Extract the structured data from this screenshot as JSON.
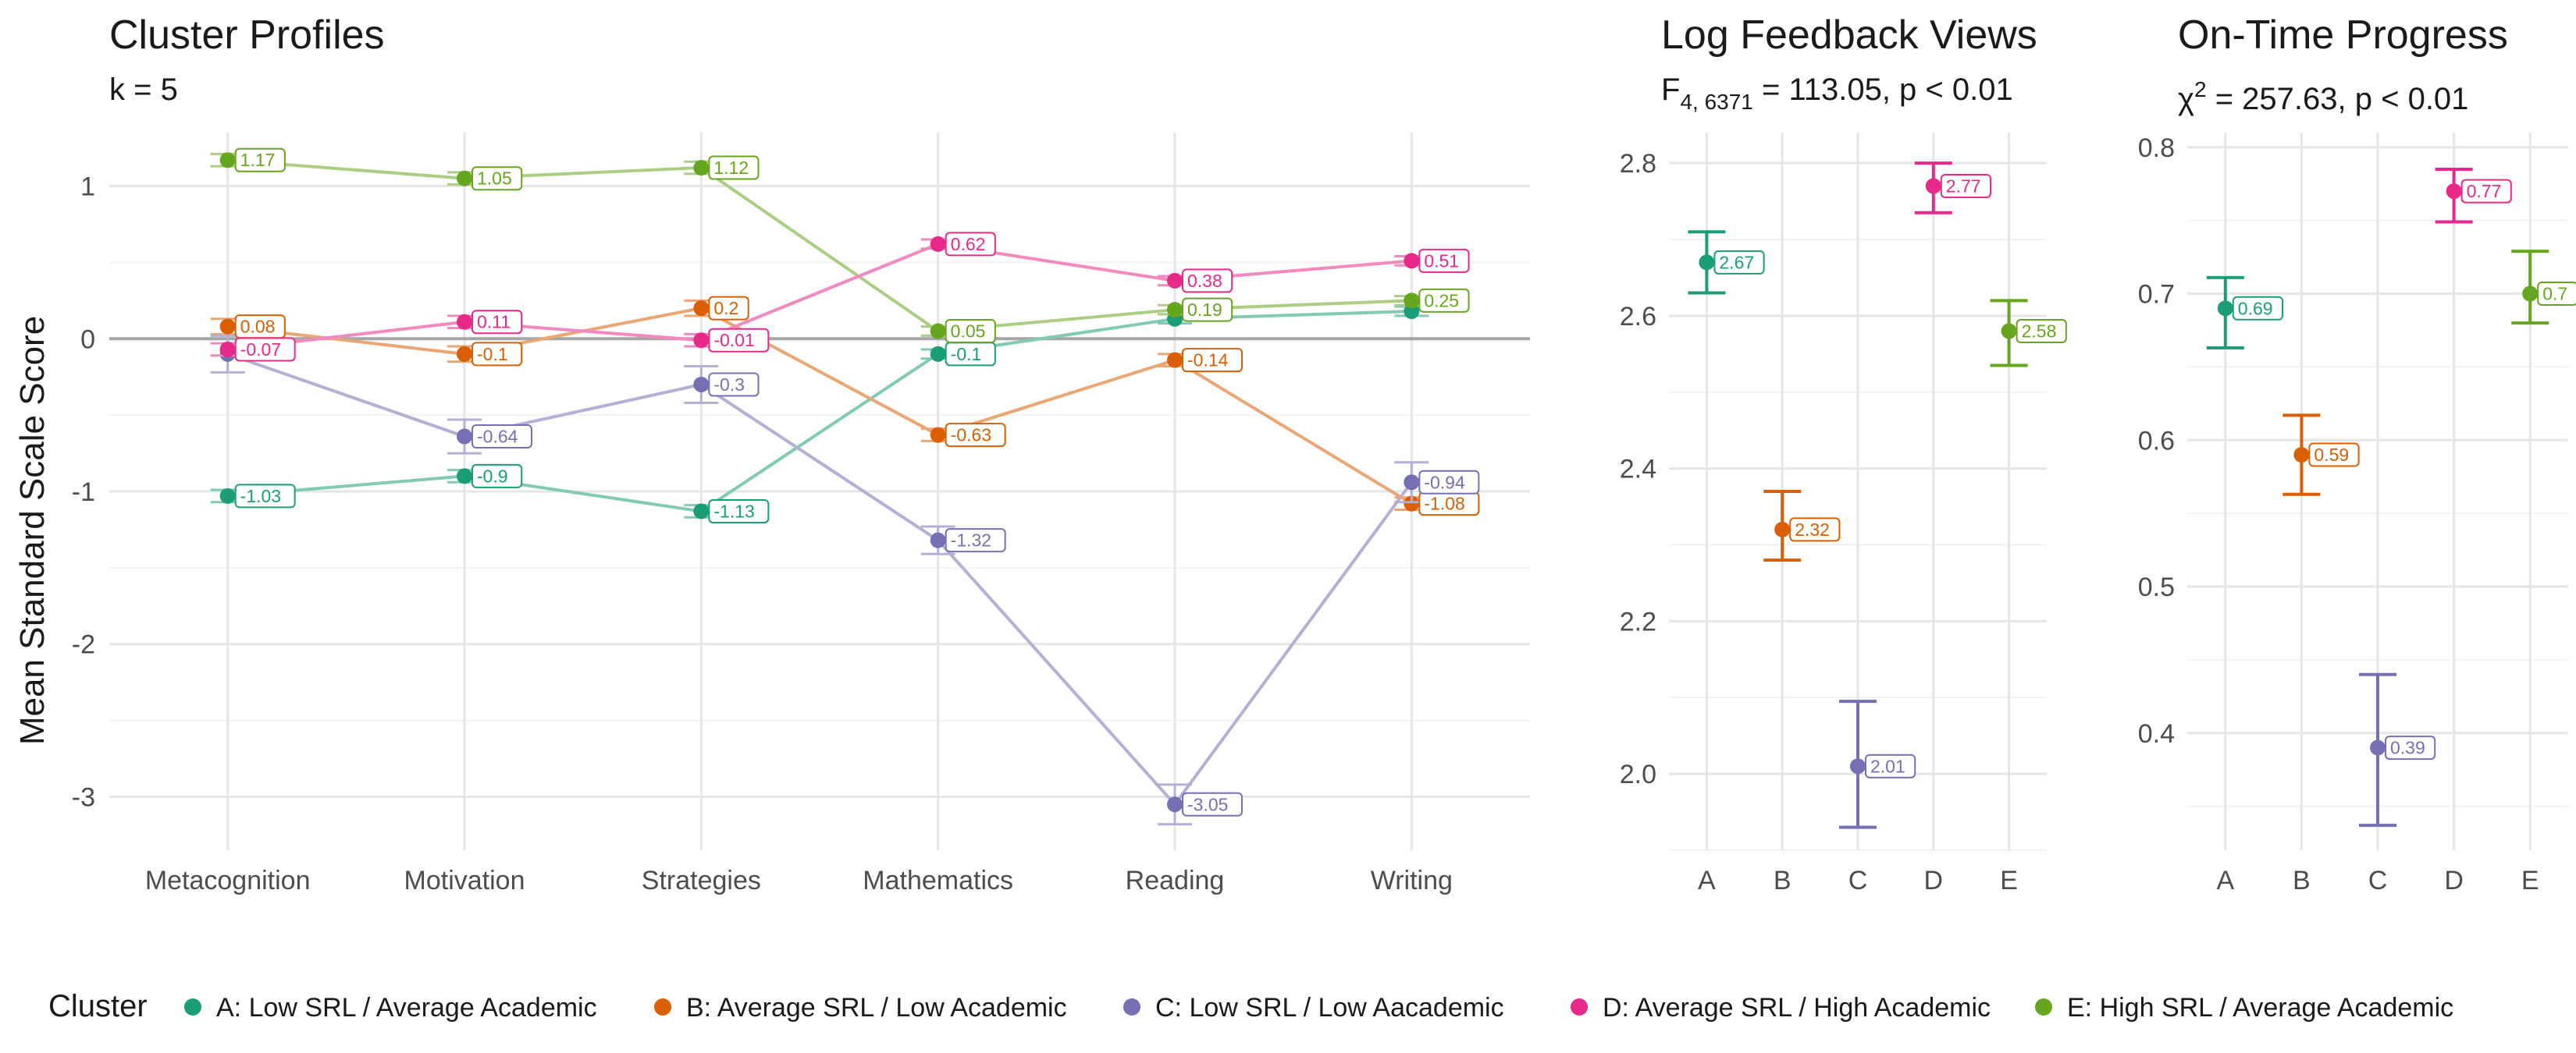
{
  "colors": {
    "A": "#1b9e77",
    "B": "#d95f02",
    "C": "#7570b3",
    "D": "#e7298a",
    "E": "#66a61e"
  },
  "legend": {
    "title": "Cluster",
    "items": [
      {
        "key": "A",
        "label": "A: Low SRL / Average Academic"
      },
      {
        "key": "B",
        "label": "B: Average SRL / Low Academic"
      },
      {
        "key": "C",
        "label": "C: Low SRL / Low Aacademic"
      },
      {
        "key": "D",
        "label": "D: Average SRL / High Academic"
      },
      {
        "key": "E",
        "label": "E: High SRL / Average Academic"
      }
    ]
  },
  "chart_data": [
    {
      "type": "line",
      "title": "Cluster Profiles",
      "subtitle": "k = 5",
      "xlabel": "",
      "ylabel": "Mean Standard Scale Score",
      "categories": [
        "Metacognition",
        "Motivation",
        "Strategies",
        "Mathematics",
        "Reading",
        "Writing"
      ],
      "ylim": [
        -3.35,
        1.35
      ],
      "yticks": [
        1,
        0,
        -1,
        -2,
        -3
      ],
      "reference_line": 0,
      "grid": true,
      "series": [
        {
          "name": "A",
          "values": [
            -1.03,
            -0.9,
            -1.13,
            -0.1,
            0.13,
            0.18
          ],
          "labels": [
            "-1.03",
            "-0.9",
            "-1.13",
            "-0.1",
            "",
            ""
          ],
          "se": [
            0.04,
            0.04,
            0.04,
            0.03,
            0.03,
            0.03
          ]
        },
        {
          "name": "B",
          "values": [
            0.08,
            -0.1,
            0.2,
            -0.63,
            -0.14,
            -1.08
          ],
          "labels": [
            "0.08",
            "-0.1",
            "0.2",
            "-0.63",
            "-0.14",
            "-1.08"
          ],
          "se": [
            0.05,
            0.05,
            0.05,
            0.04,
            0.04,
            0.04
          ]
        },
        {
          "name": "C",
          "values": [
            -0.1,
            -0.64,
            -0.3,
            -1.32,
            -3.05,
            -0.94
          ],
          "labels": [
            "",
            "-0.64",
            "-0.3",
            "-1.32",
            "-3.05",
            "-0.94"
          ],
          "se": [
            0.12,
            0.11,
            0.12,
            0.09,
            0.13,
            0.13
          ]
        },
        {
          "name": "D",
          "values": [
            -0.07,
            0.11,
            -0.01,
            0.62,
            0.38,
            0.51
          ],
          "labels": [
            "-0.07",
            "0.11",
            "-0.01",
            "0.62",
            "0.38",
            "0.51"
          ],
          "se": [
            0.04,
            0.04,
            0.04,
            0.03,
            0.03,
            0.03
          ]
        },
        {
          "name": "E",
          "values": [
            1.17,
            1.05,
            1.12,
            0.05,
            0.19,
            0.25
          ],
          "labels": [
            "1.17",
            "1.05",
            "1.12",
            "0.05",
            "0.19",
            "0.25"
          ],
          "se": [
            0.04,
            0.04,
            0.04,
            0.03,
            0.03,
            0.03
          ]
        }
      ]
    },
    {
      "type": "scatter",
      "title": "Log Feedback Views",
      "subtitle": "F4, 6371 = 113.05, p < 0.01",
      "subtitle_parts": {
        "pre": "F",
        "sub": "4, 6371",
        "post": " = 113.05, p < 0.01"
      },
      "categories": [
        "A",
        "B",
        "C",
        "D",
        "E"
      ],
      "values": [
        2.67,
        2.32,
        2.01,
        2.77,
        2.58
      ],
      "labels": [
        "2.67",
        "2.32",
        "2.01",
        "2.77",
        "2.58"
      ],
      "ci_low": [
        2.63,
        2.28,
        1.93,
        2.735,
        2.535
      ],
      "ci_high": [
        2.71,
        2.37,
        2.095,
        2.8,
        2.62
      ],
      "ylim": [
        1.9,
        2.84
      ],
      "yticks": [
        2.8,
        2.6,
        2.4,
        2.2,
        2.0
      ],
      "ytick_labels": [
        "2.8",
        "2.6",
        "2.4",
        "2.2",
        "2.0"
      ],
      "grid": true
    },
    {
      "type": "scatter",
      "title": "On-Time Progress",
      "subtitle": "χ2 = 257.63, p < 0.01",
      "subtitle_parts": {
        "pre": "χ",
        "sup": "2",
        "post": " = 257.63, p < 0.01"
      },
      "categories": [
        "A",
        "B",
        "C",
        "D",
        "E"
      ],
      "values": [
        0.69,
        0.59,
        0.39,
        0.77,
        0.7
      ],
      "labels": [
        "0.69",
        "0.59",
        "0.39",
        "0.77",
        "0.7"
      ],
      "ci_low": [
        0.663,
        0.563,
        0.337,
        0.749,
        0.68
      ],
      "ci_high": [
        0.711,
        0.617,
        0.44,
        0.785,
        0.729
      ],
      "ylim": [
        0.32,
        0.81
      ],
      "yticks": [
        0.8,
        0.7,
        0.6,
        0.5,
        0.4
      ],
      "ytick_labels": [
        "0.8",
        "0.7",
        "0.6",
        "0.5",
        "0.4"
      ],
      "grid": true
    }
  ]
}
